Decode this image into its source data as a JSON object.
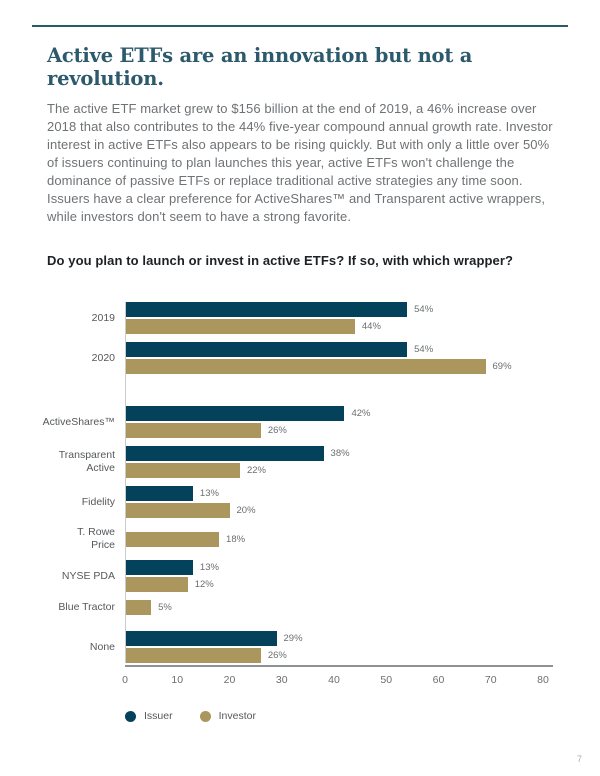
{
  "page": {
    "number": "7"
  },
  "header": {
    "title": "Active ETFs are an innovation but not a revolution.",
    "body": "The active ETF market grew to $156 billion at the end of 2019, a 46% increase over 2018 that also contributes to the 44% five-year compound annual growth rate. Investor interest in active ETFs also appears to be rising quickly. But with only a little over 50% of issuers continuing to plan launches this year, active ETFs won't challenge the dominance of passive ETFs or replace traditional active strategies any time soon. Issuers have a clear preference for ActiveShares™ and Transparent active wrappers, while investors don't seem to have a strong favorite."
  },
  "chart_question": "Do you plan to launch or invest in active ETFs? If so, with which wrapper?",
  "chart_data": {
    "type": "bar",
    "orientation": "horizontal",
    "title": "Do you plan to launch or invest in active ETFs? If so, with which wrapper?",
    "categories": [
      "2019",
      "2020",
      "ActiveShares™",
      "Transparent Active",
      "Fidelity",
      "T. Rowe Price",
      "NYSE PDA",
      "Blue Tractor",
      "None"
    ],
    "category_label_lines": [
      [
        "2019"
      ],
      [
        "2020"
      ],
      [
        "ActiveShares™"
      ],
      [
        "Transparent",
        "Active"
      ],
      [
        "Fidelity"
      ],
      [
        "T. Rowe",
        "Price"
      ],
      [
        "NYSE PDA"
      ],
      [
        "Blue Tractor"
      ],
      [
        "None"
      ]
    ],
    "series": [
      {
        "name": "Issuer",
        "color": "#04415a",
        "values": [
          54,
          54,
          42,
          38,
          13,
          null,
          13,
          null,
          29
        ]
      },
      {
        "name": "Investor",
        "color": "#ab965e",
        "values": [
          44,
          69,
          26,
          22,
          20,
          18,
          12,
          5,
          26
        ]
      }
    ],
    "value_suffix": "%",
    "x_ticks": [
      "0",
      "10",
      "20",
      "30",
      "40",
      "50",
      "60",
      "70",
      "80"
    ],
    "xlim": [
      0,
      80
    ],
    "grid": false,
    "legend_position": "bottom",
    "legend": [
      "Issuer",
      "Investor"
    ]
  },
  "colors": {
    "accent_rule": "#2c5a6c",
    "issuer": "#04415a",
    "investor": "#ab965e",
    "baseline": "#8e9193",
    "axis_line": "#c9cbcc"
  }
}
